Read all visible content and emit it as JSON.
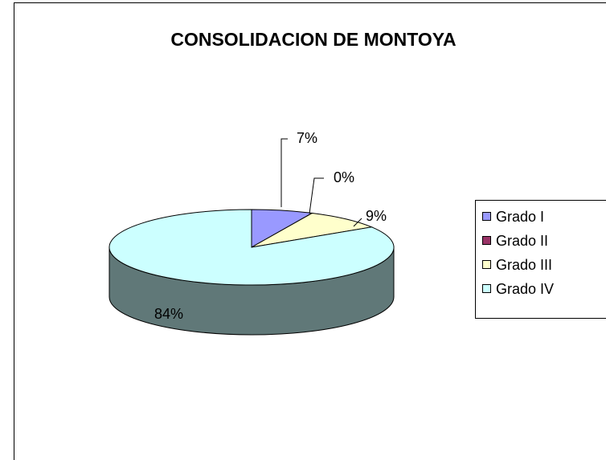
{
  "chart_data": {
    "type": "pie3d",
    "title": "CONSOLIDACION DE MONTOYA",
    "categories": [
      "Grado I",
      "Grado II",
      "Grado III",
      "Grado IV"
    ],
    "values": [
      7,
      0,
      9,
      84
    ],
    "value_labels": [
      "7%",
      "0%",
      "9%",
      "84%"
    ],
    "colors": [
      "#9999ff",
      "#993366",
      "#ffffcc",
      "#ccffff"
    ],
    "legend": "right"
  }
}
